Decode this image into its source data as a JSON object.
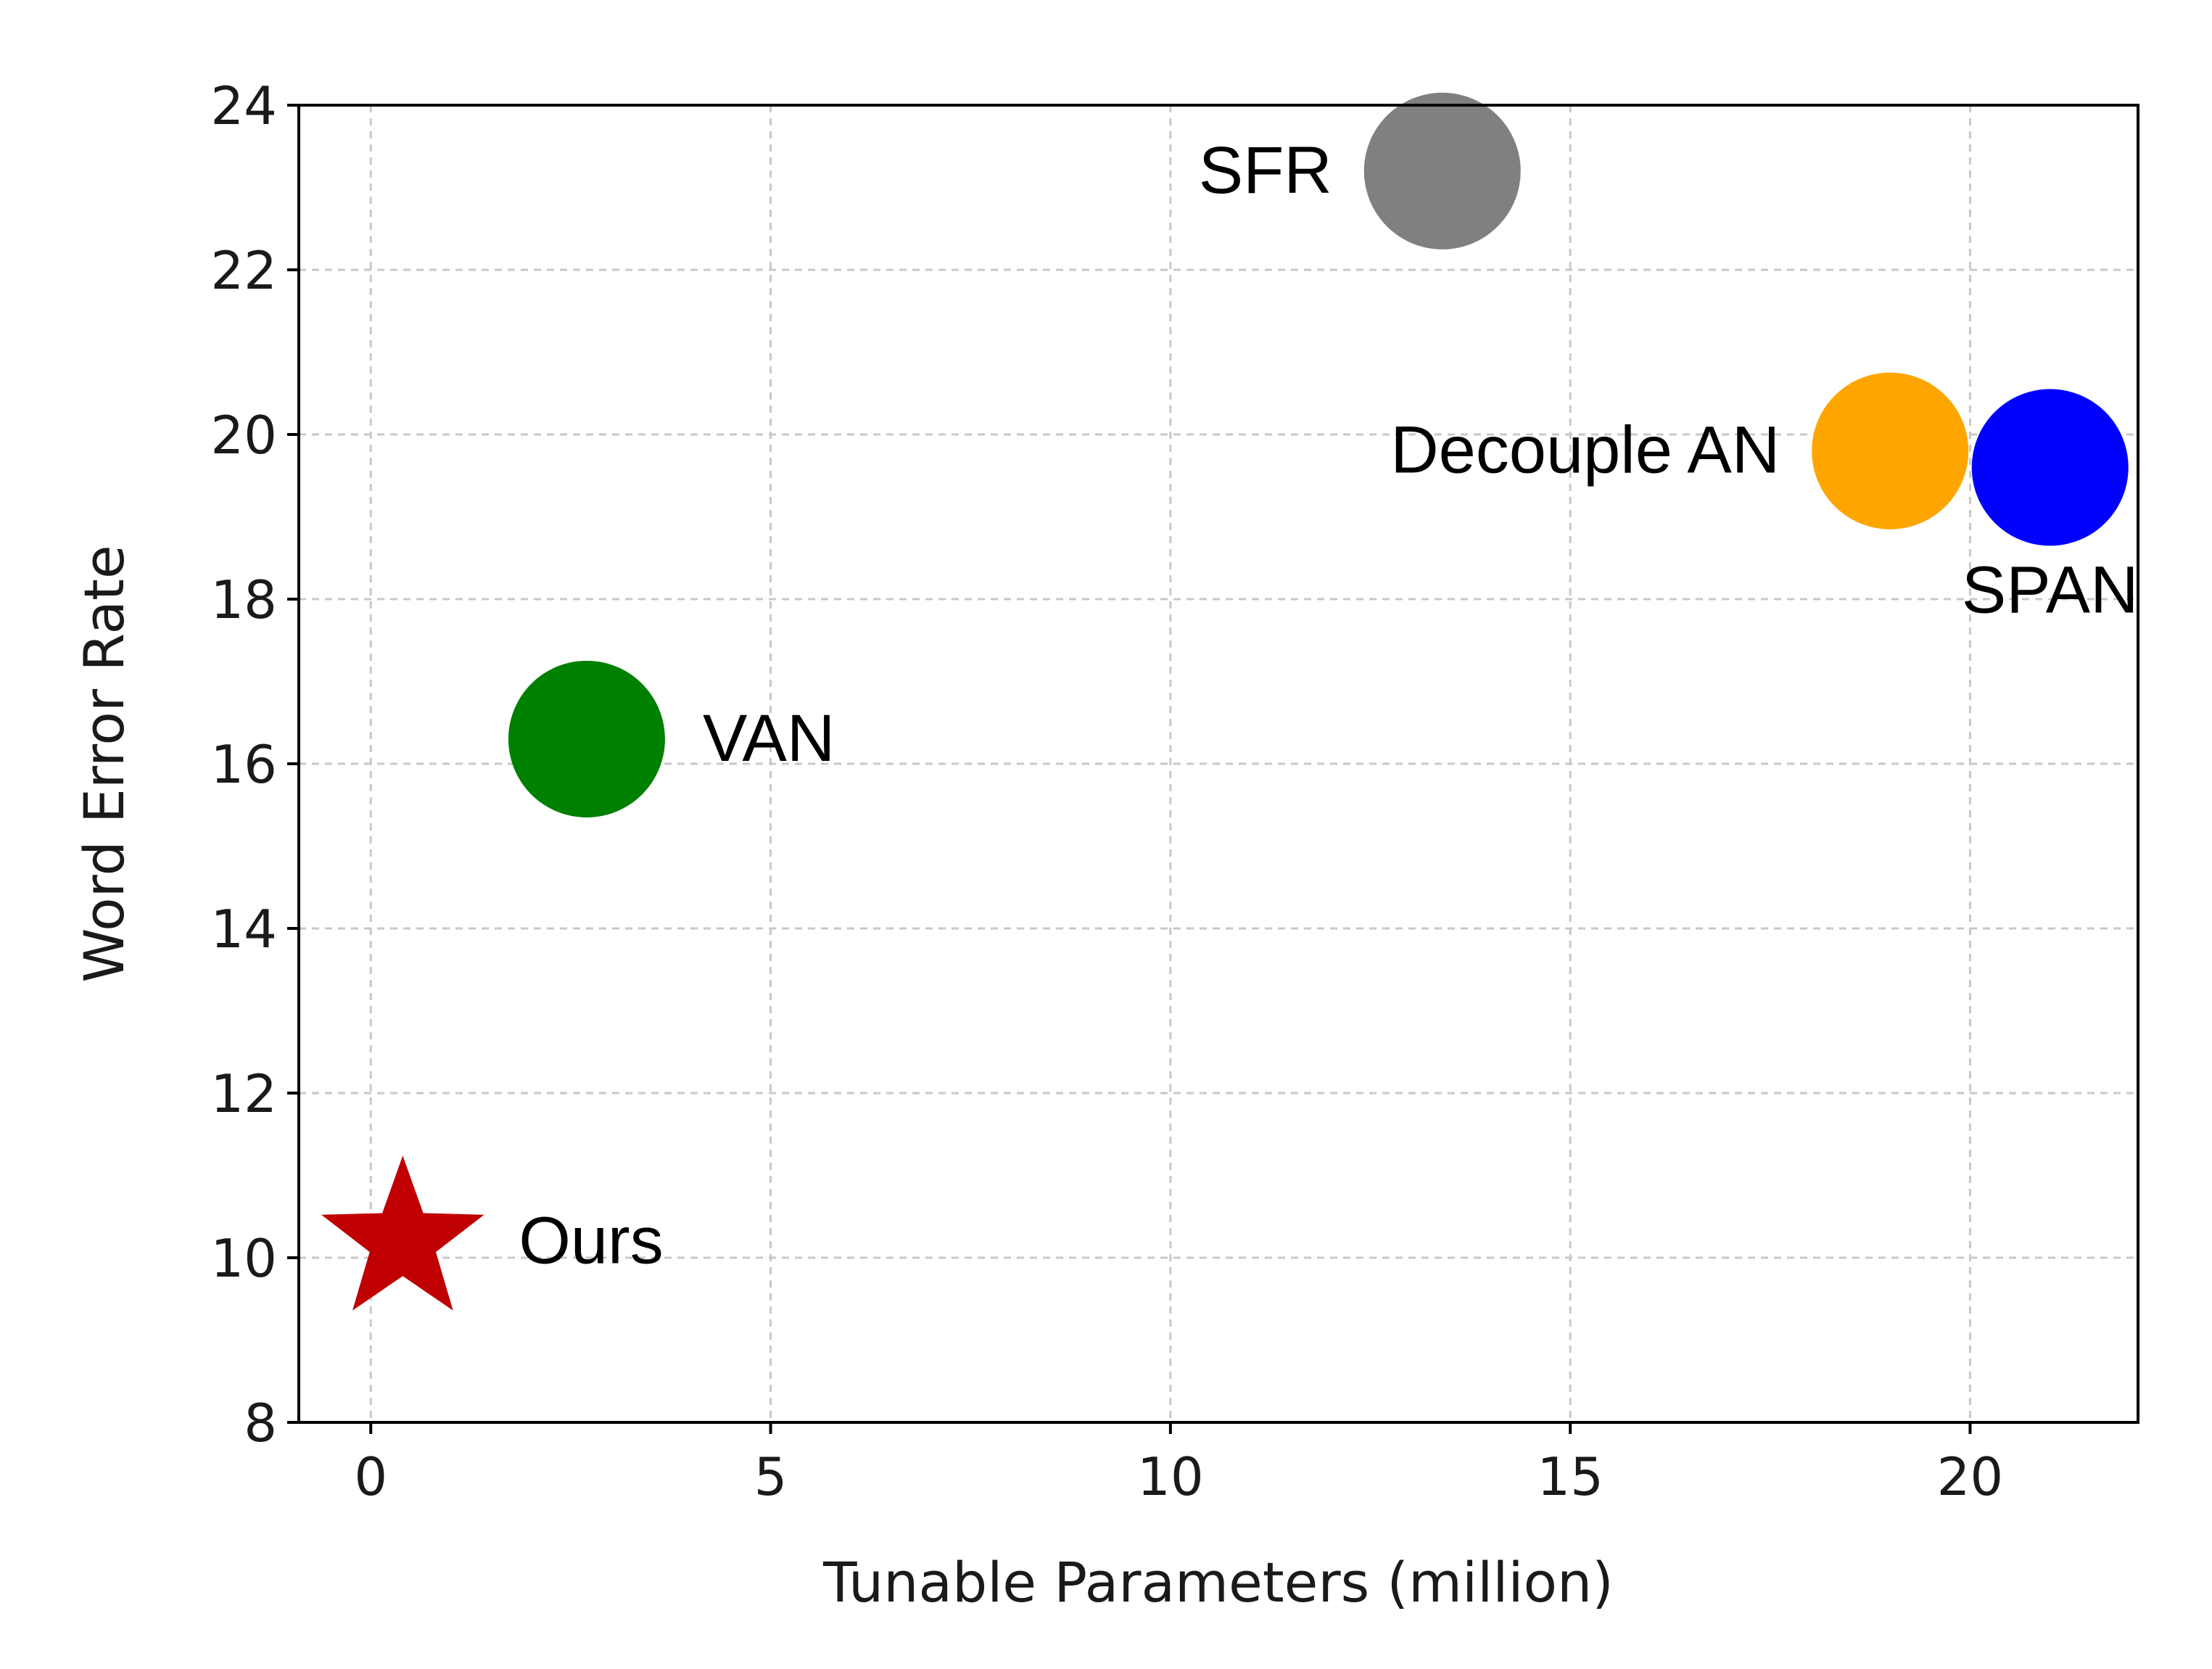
{
  "chart_data": {
    "type": "scatter",
    "xlabel": "Tunable Parameters (million)",
    "ylabel": "Word Error Rate",
    "xlim": [
      -0.9,
      22.1
    ],
    "ylim": [
      8,
      24
    ],
    "xticks": [
      0,
      5,
      10,
      15,
      20
    ],
    "yticks": [
      8,
      10,
      12,
      14,
      16,
      18,
      20,
      22,
      24
    ],
    "grid": true,
    "points": [
      {
        "label": "SFR",
        "x": 13.4,
        "y": 23.2,
        "marker": "circle",
        "color": "#808080",
        "label_position": "left"
      },
      {
        "label": "Decouple AN",
        "x": 19.0,
        "y": 19.8,
        "marker": "circle",
        "color": "#FFA500",
        "label_position": "left"
      },
      {
        "label": "SPAN",
        "x": 21.0,
        "y": 19.6,
        "marker": "circle",
        "color": "#0000FF",
        "label_position": "below"
      },
      {
        "label": "VAN",
        "x": 2.7,
        "y": 16.3,
        "marker": "circle",
        "color": "#008000",
        "label_position": "right"
      },
      {
        "label": "Ours",
        "x": 0.4,
        "y": 10.2,
        "marker": "star",
        "color": "#C00000",
        "label_position": "right"
      }
    ]
  }
}
